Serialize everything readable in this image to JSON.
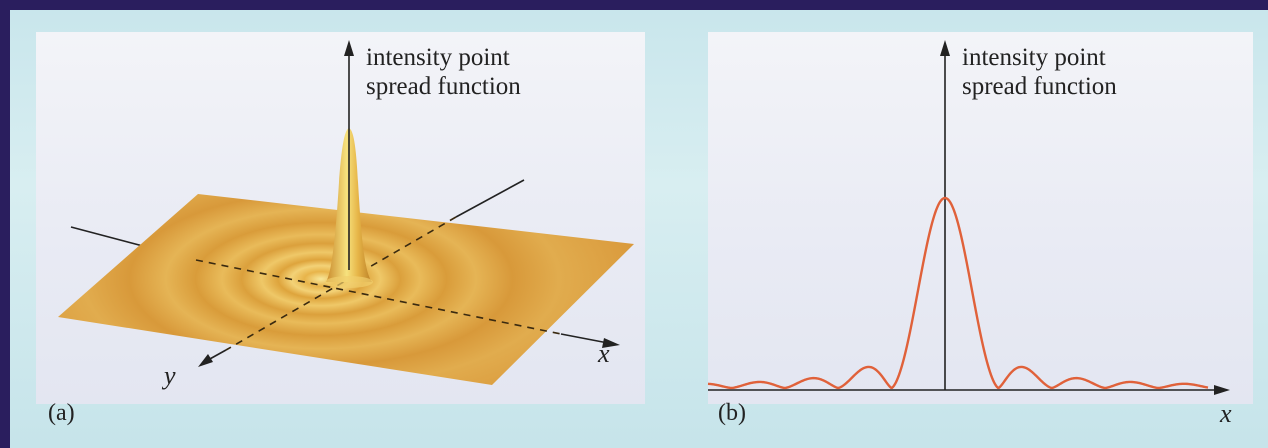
{
  "panel_a": {
    "label": "(a)",
    "title_line1": "intensity point",
    "title_line2": "spread function",
    "x_axis_label": "x",
    "y_axis_label": "y"
  },
  "panel_b": {
    "label": "(b)",
    "title_line1": "intensity point",
    "title_line2": "spread function",
    "x_axis_label": "x"
  },
  "colors": {
    "surface": "#e0a43a",
    "curve": "#e0613a",
    "axis": "#222222"
  }
}
